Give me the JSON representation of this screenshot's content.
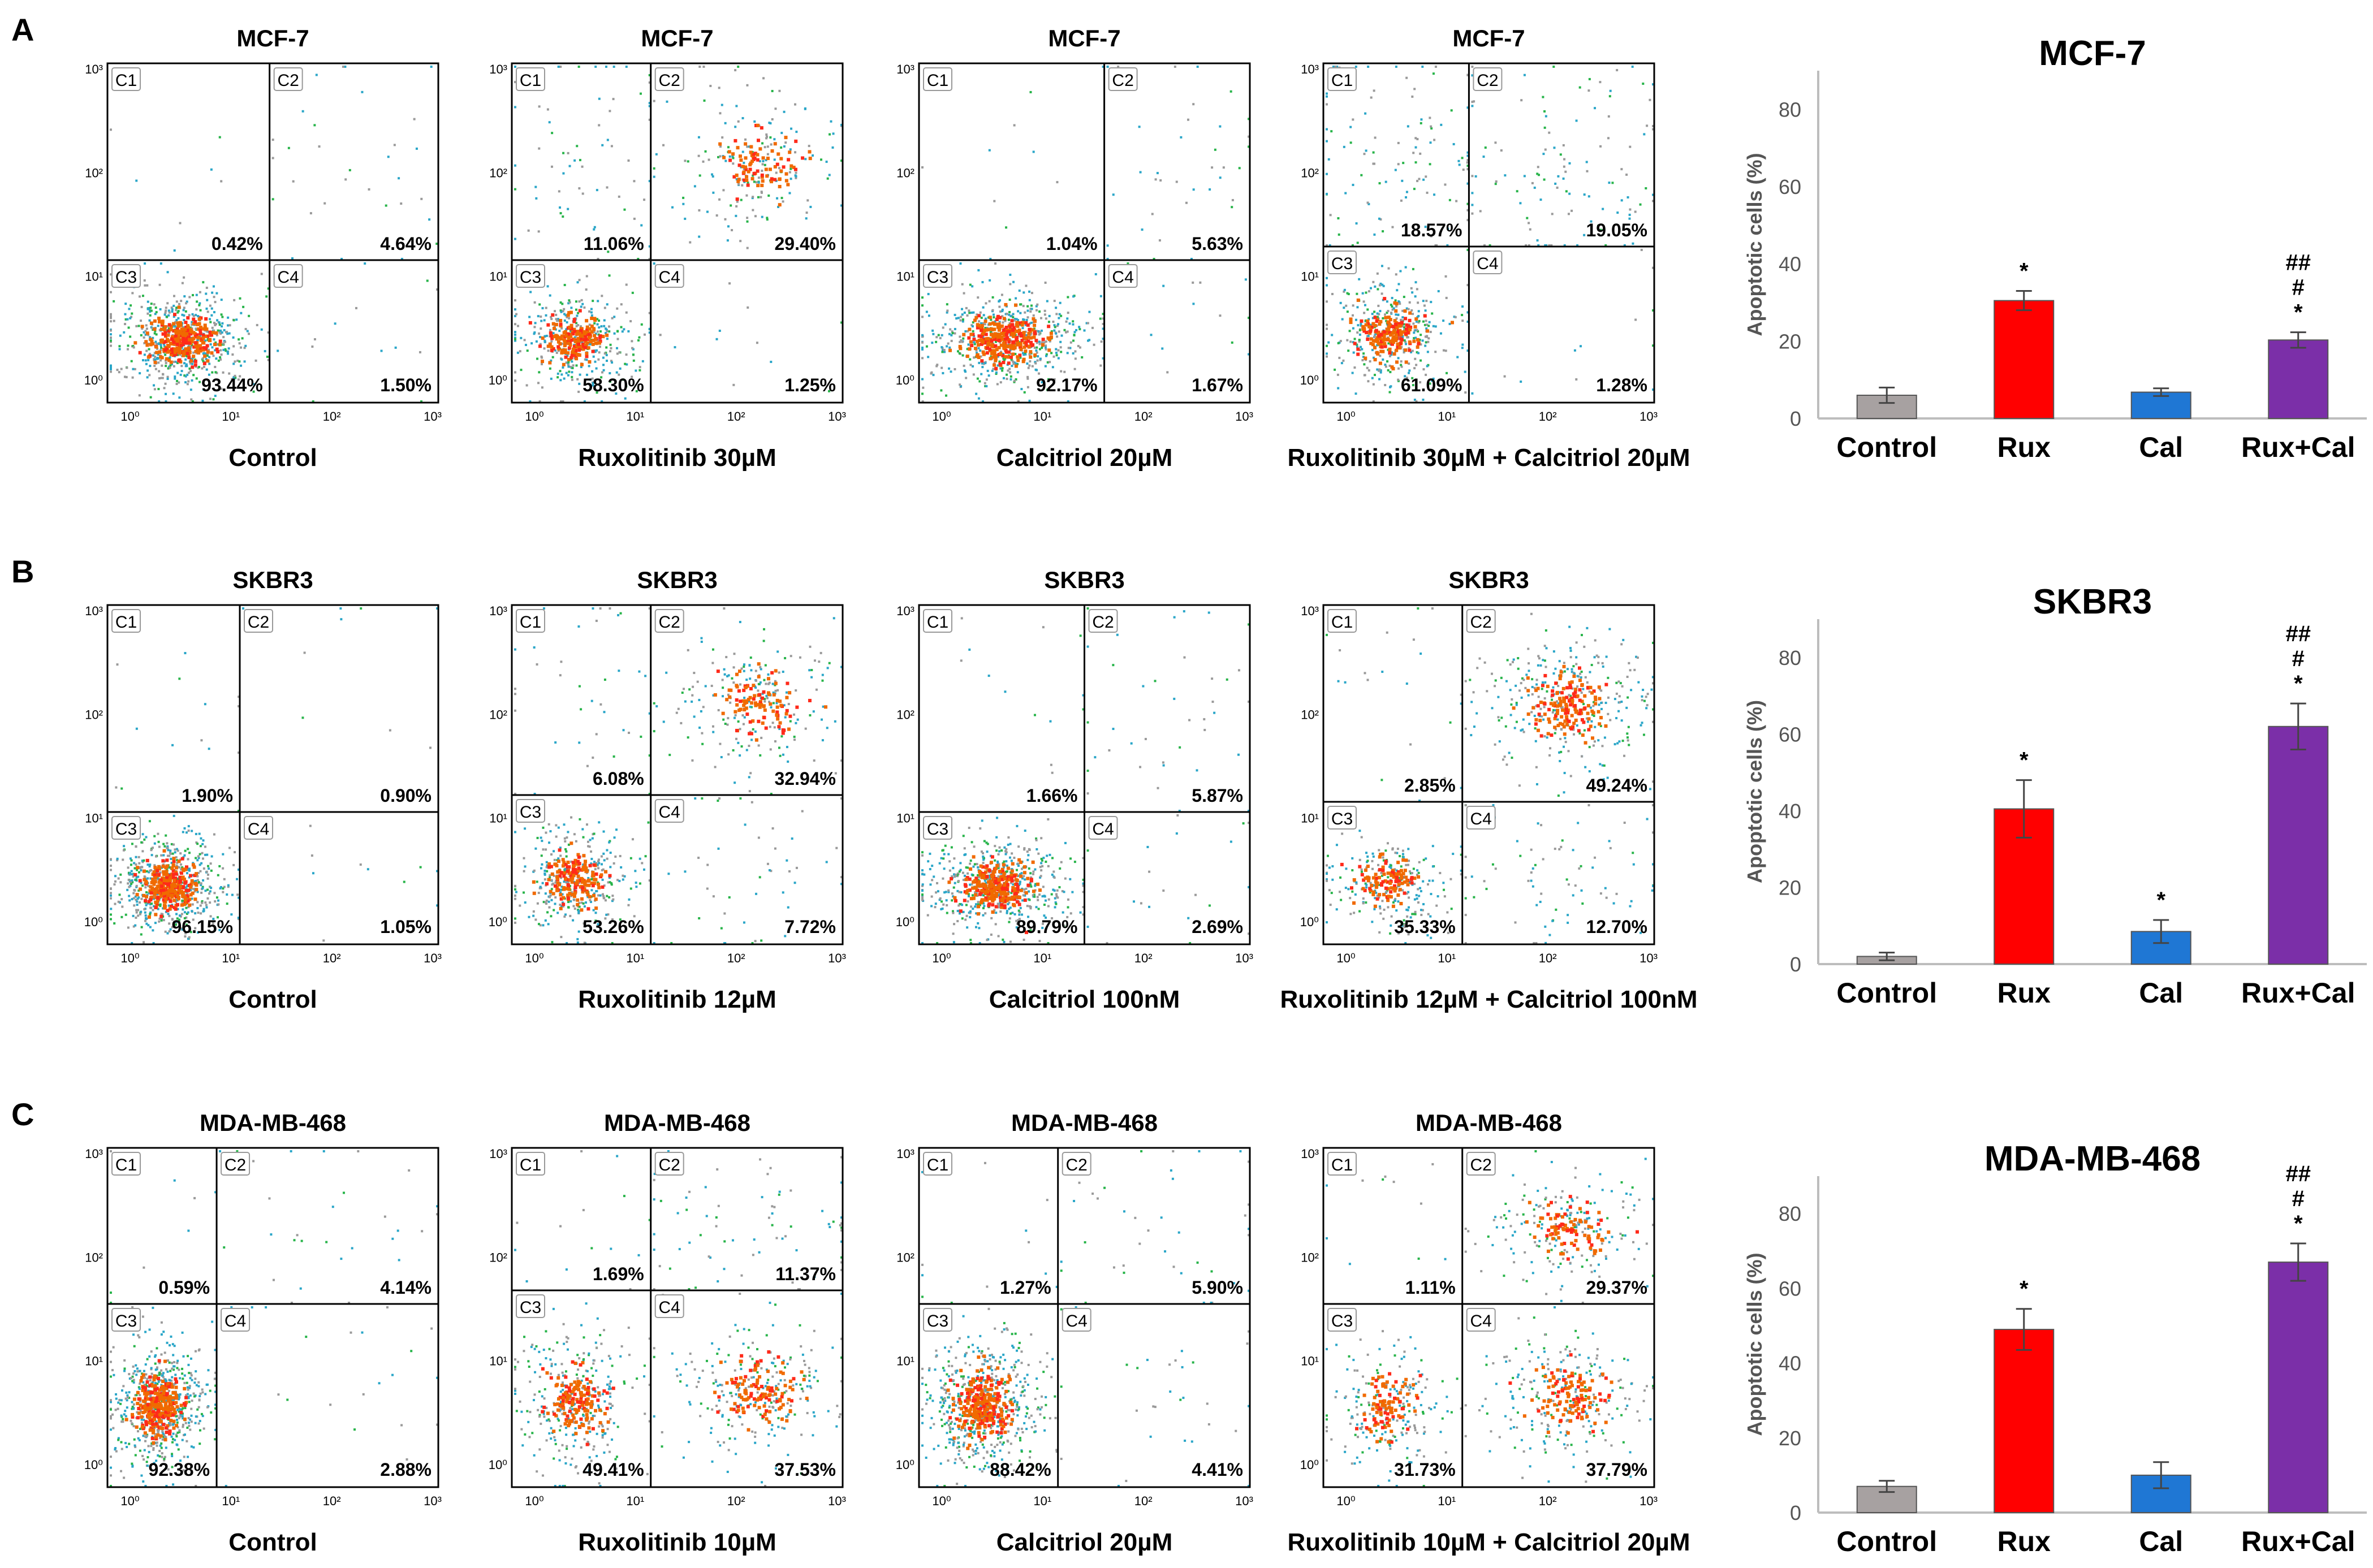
{
  "figure": {
    "rows": [
      {
        "letter": "A",
        "cell_line": "MCF-7",
        "panels": [
          {
            "title": "MCF-7",
            "xlabel": "Control",
            "pct": [
              "0.42%",
              "4.64%",
              "93.44%",
              "1.50%"
            ]
          },
          {
            "title": "MCF-7",
            "xlabel": "Ruxolitinib 30µM",
            "pct": [
              "11.06%",
              "29.40%",
              "58.30%",
              "1.25%"
            ]
          },
          {
            "title": "MCF-7",
            "xlabel": "Calcitriol 20µM",
            "pct": [
              "1.04%",
              "5.63%",
              "92.17%",
              "1.67%"
            ]
          },
          {
            "title": "MCF-7",
            "xlabel": "Ruxolitinib 30µM + Calcitriol 20µM",
            "pct": [
              "18.57%",
              "19.05%",
              "61.09%",
              "1.28%"
            ]
          }
        ]
      },
      {
        "letter": "B",
        "cell_line": "SKBR3",
        "panels": [
          {
            "title": "SKBR3",
            "xlabel": "Control",
            "pct": [
              "1.90%",
              "0.90%",
              "96.15%",
              "1.05%"
            ]
          },
          {
            "title": "SKBR3",
            "xlabel": "Ruxolitinib 12µM",
            "pct": [
              "6.08%",
              "32.94%",
              "53.26%",
              "7.72%"
            ]
          },
          {
            "title": "SKBR3",
            "xlabel": "Calcitriol 100nM",
            "pct": [
              "1.66%",
              "5.87%",
              "89.79%",
              "2.69%"
            ]
          },
          {
            "title": "SKBR3",
            "xlabel": "Ruxolitinib 12µM + Calcitriol 100nM",
            "pct": [
              "2.85%",
              "49.24%",
              "35.33%",
              "12.70%"
            ]
          }
        ]
      },
      {
        "letter": "C",
        "cell_line": "MDA-MB-468",
        "panels": [
          {
            "title": "MDA-MB-468",
            "xlabel": "Control",
            "pct": [
              "0.59%",
              "4.14%",
              "92.38%",
              "2.88%"
            ]
          },
          {
            "title": "MDA-MB-468",
            "xlabel": "Ruxolitinib 10µM",
            "pct": [
              "1.69%",
              "11.37%",
              "49.41%",
              "37.53%"
            ]
          },
          {
            "title": "MDA-MB-468",
            "xlabel": "Calcitriol 20µM",
            "pct": [
              "1.27%",
              "5.90%",
              "88.42%",
              "4.41%"
            ]
          },
          {
            "title": "MDA-MB-468",
            "xlabel": "Ruxolitinib 10µM + Calcitriol 20µM",
            "pct": [
              "1.11%",
              "29.37%",
              "31.73%",
              "37.79%"
            ]
          }
        ]
      }
    ],
    "quadrant_labels": [
      "C1",
      "C2",
      "C3",
      "C4"
    ],
    "flow_ticks": [
      "10⁰",
      "10¹",
      "10²",
      "10³"
    ]
  },
  "chart_data": [
    {
      "type": "bar",
      "title": "MCF-7",
      "categories": [
        "Control",
        "Rux",
        "Cal",
        "Rux+Cal"
      ],
      "values": [
        6,
        30.5,
        6.8,
        20.3
      ],
      "errors": [
        2,
        2.5,
        1,
        2
      ],
      "annotations": [
        [],
        [
          "*"
        ],
        [],
        [
          "*",
          "#",
          "##"
        ]
      ],
      "ylabel": "Apoptotic cells (%)",
      "yticks": [
        0,
        20,
        40,
        60,
        80
      ],
      "ylim": [
        0,
        90
      ],
      "colors": [
        "#a7a1a1",
        "#ff0000",
        "#1f77d4",
        "#7b2fa8"
      ]
    },
    {
      "type": "bar",
      "title": "SKBR3",
      "categories": [
        "Control",
        "Rux",
        "Cal",
        "Rux+Cal"
      ],
      "values": [
        2,
        40.5,
        8.5,
        62
      ],
      "errors": [
        1,
        7.5,
        3,
        6
      ],
      "annotations": [
        [],
        [
          "*"
        ],
        [
          "*"
        ],
        [
          "*",
          "#",
          "##"
        ]
      ],
      "ylabel": "Apoptotic cells (%)",
      "yticks": [
        0,
        20,
        40,
        60,
        80
      ],
      "ylim": [
        0,
        90
      ],
      "colors": [
        "#a7a1a1",
        "#ff0000",
        "#1f77d4",
        "#7b2fa8"
      ]
    },
    {
      "type": "bar",
      "title": "MDA-MB-468",
      "categories": [
        "Control",
        "Rux",
        "Cal",
        "Rux+Cal"
      ],
      "values": [
        7,
        49,
        10,
        67
      ],
      "errors": [
        1.5,
        5.5,
        3.5,
        5
      ],
      "annotations": [
        [],
        [
          "*"
        ],
        [],
        [
          "*",
          "#",
          "##"
        ]
      ],
      "ylabel": "Apoptotic cells (%)",
      "yticks": [
        0,
        20,
        40,
        60,
        80
      ],
      "ylim": [
        0,
        90
      ],
      "colors": [
        "#a7a1a1",
        "#ff0000",
        "#1f77d4",
        "#7b2fa8"
      ]
    }
  ]
}
